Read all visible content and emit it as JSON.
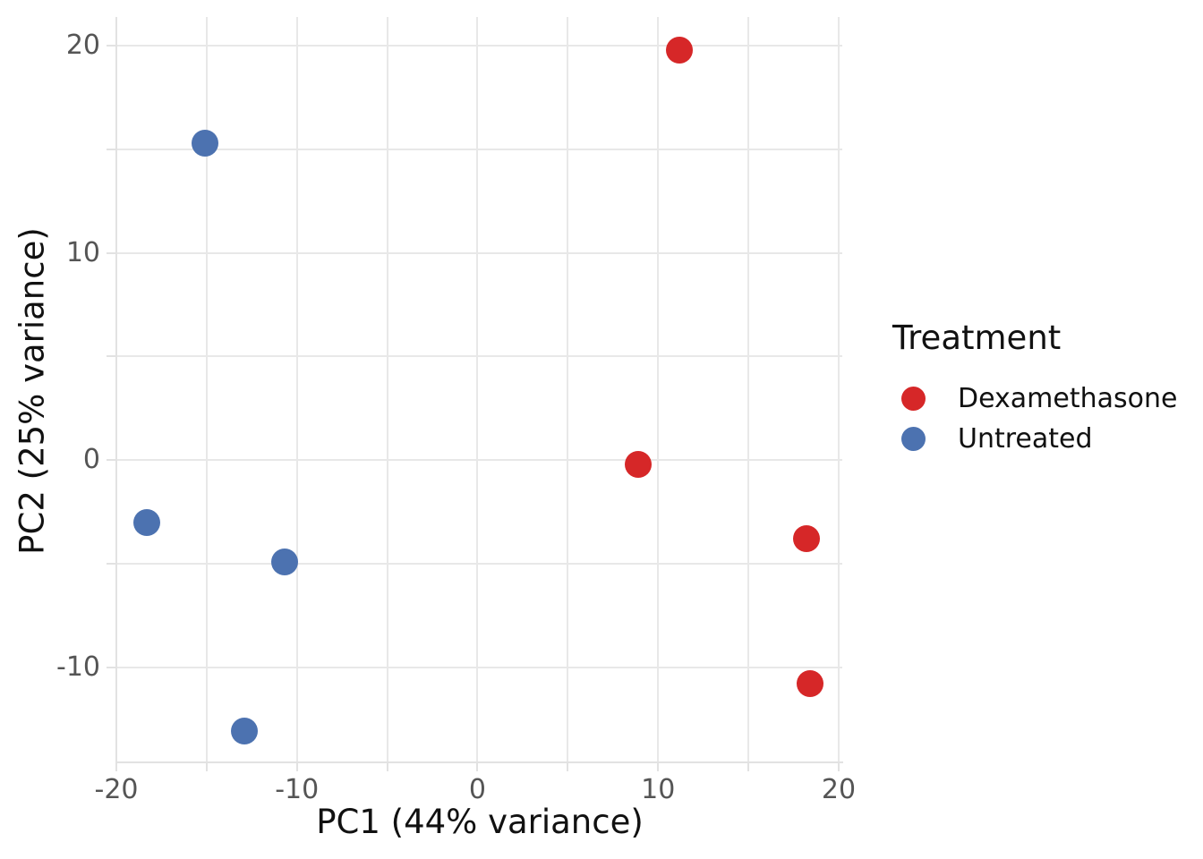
{
  "chart_data": {
    "type": "scatter",
    "title": "",
    "xlabel": "PC1 (44% variance)",
    "ylabel": "PC2 (25% variance)",
    "xlim": [
      -20,
      20.2
    ],
    "ylim": [
      -14.6,
      21.4
    ],
    "xticks_major": [
      -20,
      -10,
      0,
      10,
      20
    ],
    "yticks_major": [
      20,
      10,
      0,
      -10
    ],
    "xticks_minor": [
      -15,
      -5,
      5,
      15
    ],
    "yticks_minor": [
      15,
      5,
      -5
    ],
    "grid": "on",
    "legend_position": "right-outside",
    "legend_title": "Treatment",
    "series": [
      {
        "name": "Dexamethasone",
        "color": "#d62728",
        "points": [
          [
            11.2,
            19.8
          ],
          [
            8.9,
            -0.2
          ],
          [
            18.2,
            -3.8
          ],
          [
            18.4,
            -10.8
          ]
        ]
      },
      {
        "name": "Untreated",
        "color": "#4C72B0",
        "points": [
          [
            -15.1,
            15.3
          ],
          [
            -18.3,
            -3.0
          ],
          [
            -10.7,
            -4.9
          ],
          [
            -12.9,
            -13.1
          ]
        ]
      }
    ]
  },
  "styles": {
    "background": "#ffffff",
    "grid_color": "#e8e8e8",
    "spine_color": "#e2e2e2",
    "tick_color": "#e2e2e2",
    "tick_label_color": "#555555",
    "axis_title_color": "#111111",
    "legend_text_color": "#111111"
  }
}
